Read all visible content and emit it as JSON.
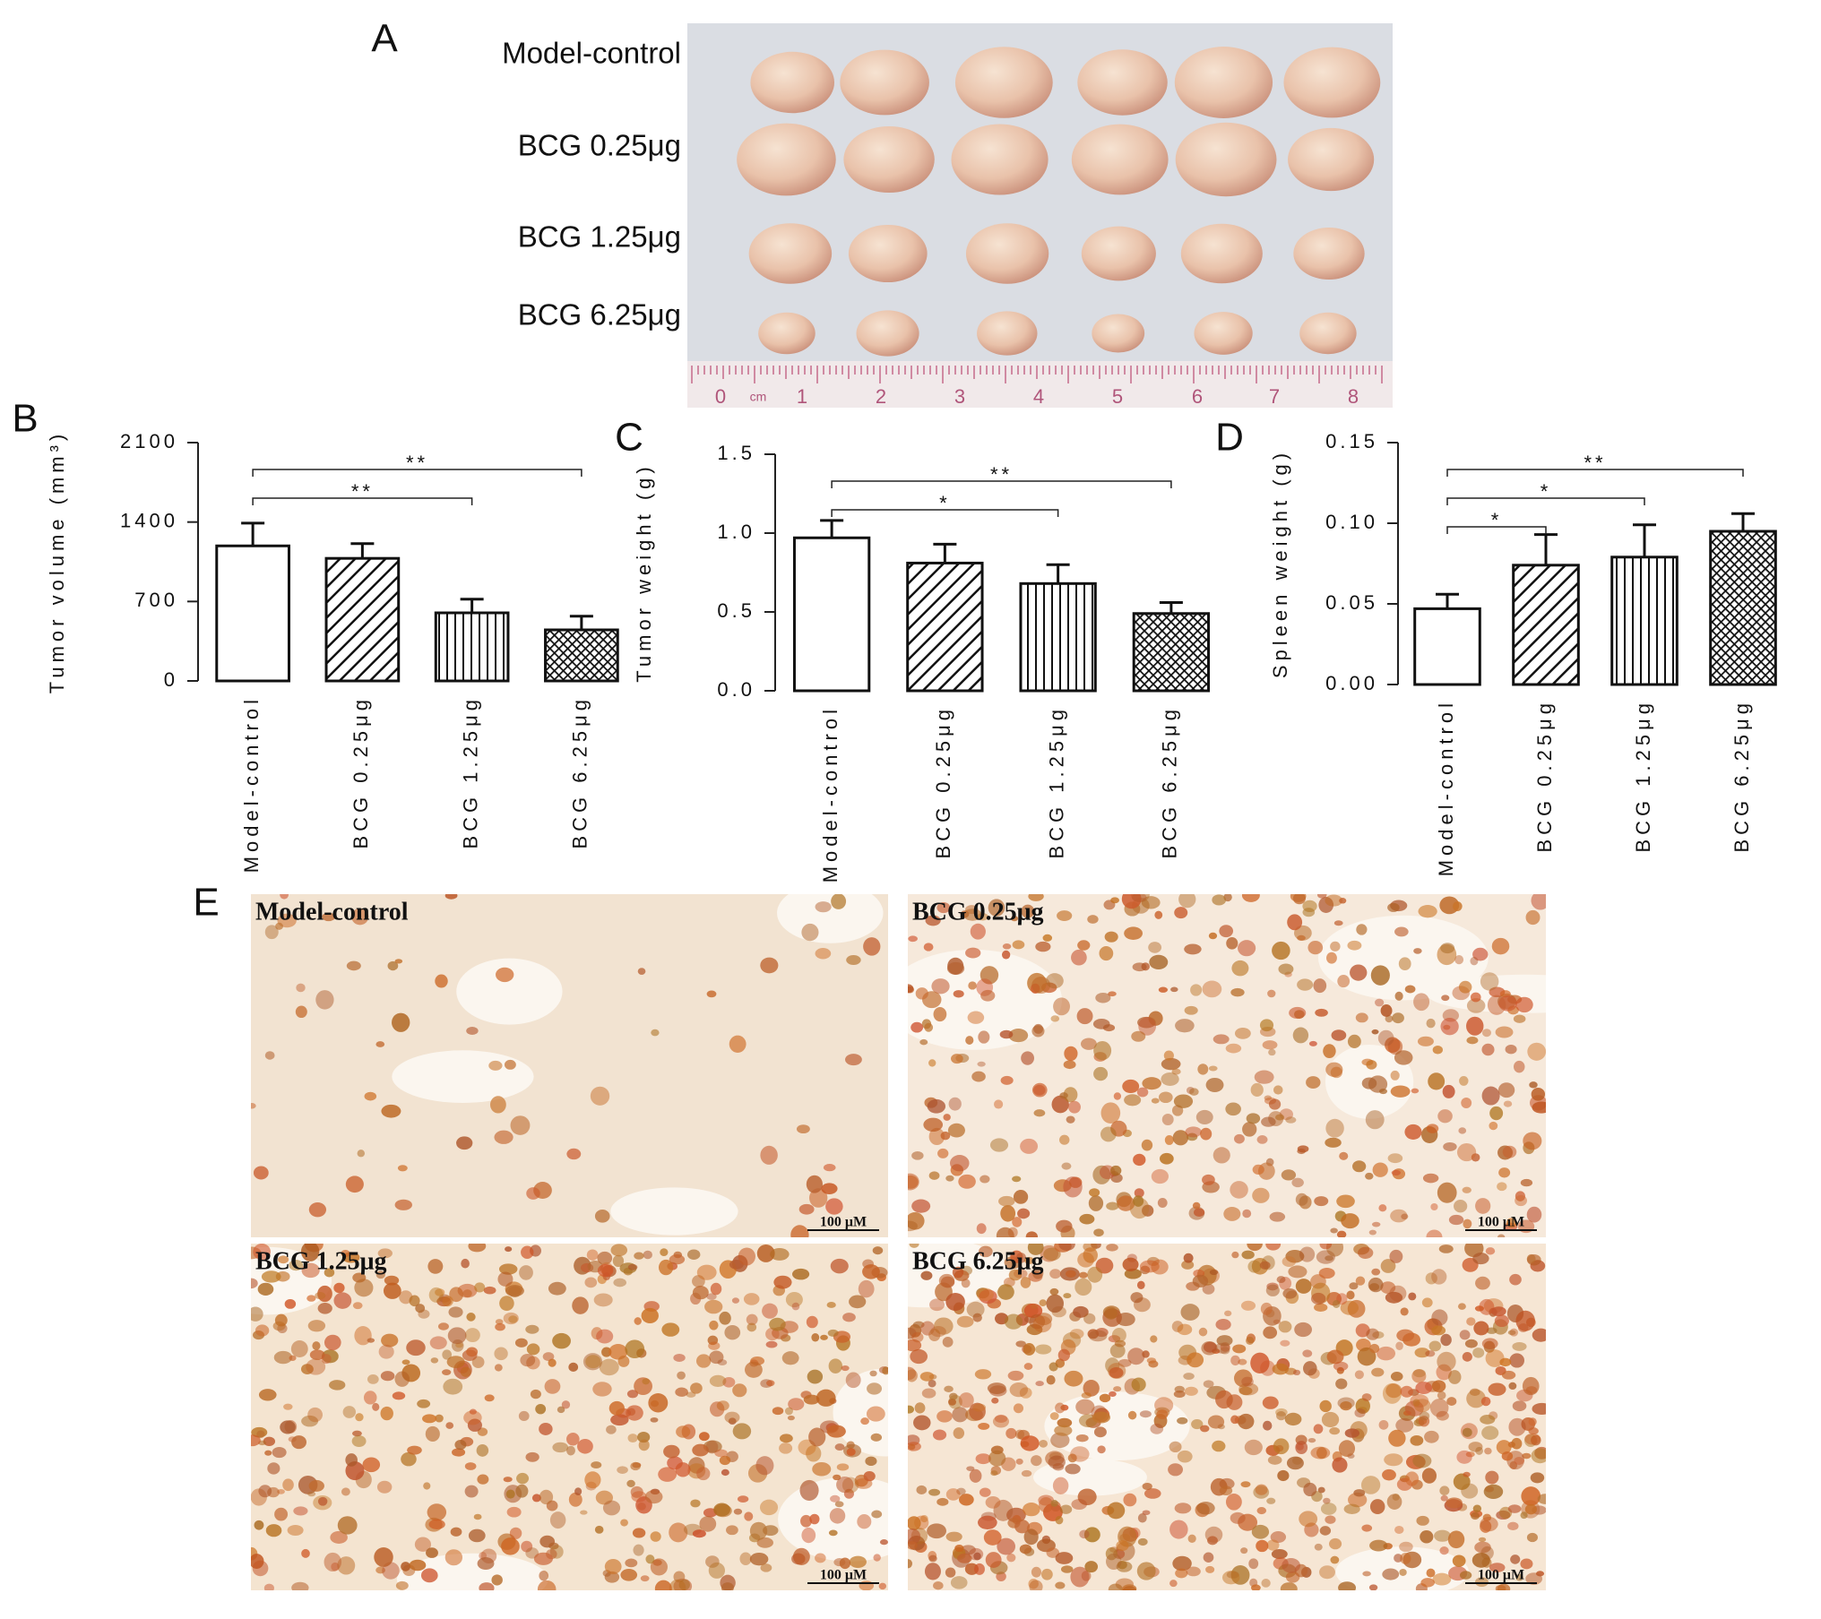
{
  "panel_labels": [
    "A",
    "B",
    "C",
    "D",
    "E"
  ],
  "photo": {
    "rows": [
      "Model-control",
      "BCG 0.25μg",
      "BCG 1.25μg",
      "BCG 6.25μg"
    ],
    "ruler": [
      "0",
      "cm",
      "1",
      "2",
      "3",
      "4",
      "5",
      "6",
      "7",
      "8"
    ]
  },
  "chart_data": [
    {
      "type": "bar",
      "y_label": "Tumor volume (mm³)",
      "categories": [
        "Model-control",
        "BCG 0.25μg",
        "BCG 1.25μg",
        "BCG 6.25μg"
      ],
      "values": [
        1190,
        1080,
        600,
        450
      ],
      "errors": [
        200,
        130,
        120,
        120
      ],
      "hatch": [
        "none",
        "diagonal",
        "vertical",
        "cross"
      ],
      "ylim": [
        0,
        2100
      ],
      "yticks": [
        0,
        700,
        1400,
        2100
      ],
      "significance": [
        {
          "from": 0,
          "to": 2,
          "label": "**"
        },
        {
          "from": 0,
          "to": 3,
          "label": "**"
        }
      ]
    },
    {
      "type": "bar",
      "y_label": "Tumor weight (g)",
      "categories": [
        "Model-control",
        "BCG 0.25μg",
        "BCG 1.25μg",
        "BCG 6.25μg"
      ],
      "values": [
        0.97,
        0.81,
        0.68,
        0.49
      ],
      "errors": [
        0.11,
        0.12,
        0.12,
        0.07
      ],
      "hatch": [
        "none",
        "diagonal",
        "vertical",
        "cross"
      ],
      "ylim": [
        0,
        1.5
      ],
      "yticks": [
        {
          "value": 0,
          "label": "0.0"
        },
        0.5,
        {
          "value": 1,
          "label": "1.0"
        },
        1.5
      ],
      "significance": [
        {
          "from": 0,
          "to": 2,
          "label": "*"
        },
        {
          "from": 0,
          "to": 3,
          "label": "**"
        }
      ]
    },
    {
      "type": "bar",
      "y_label": "Spleen weight (g)",
      "categories": [
        "Model-control",
        "BCG 0.25μg",
        "BCG 1.25μg",
        "BCG 6.25μg"
      ],
      "values": [
        0.047,
        0.074,
        0.079,
        0.095
      ],
      "errors": [
        0.009,
        0.019,
        0.02,
        0.011
      ],
      "hatch": [
        "none",
        "diagonal",
        "vertical",
        "cross"
      ],
      "ylim": [
        0,
        0.15
      ],
      "yticks": [
        {
          "value": 0,
          "label": "0.00"
        },
        0.05,
        {
          "value": 0.1,
          "label": "0.10"
        },
        0.15
      ],
      "significance": [
        {
          "from": 0,
          "to": 1,
          "label": "*"
        },
        {
          "from": 0,
          "to": 2,
          "label": "*"
        },
        {
          "from": 0,
          "to": 3,
          "label": "**"
        }
      ]
    }
  ],
  "histology": [
    {
      "label": "Model-control",
      "scale": "100 μM"
    },
    {
      "label": "BCG 0.25μg",
      "scale": "100 μM"
    },
    {
      "label": "BCG 1.25μg",
      "scale": "100 μM"
    },
    {
      "label": "BCG 6.25μg",
      "scale": "100 μM"
    }
  ]
}
